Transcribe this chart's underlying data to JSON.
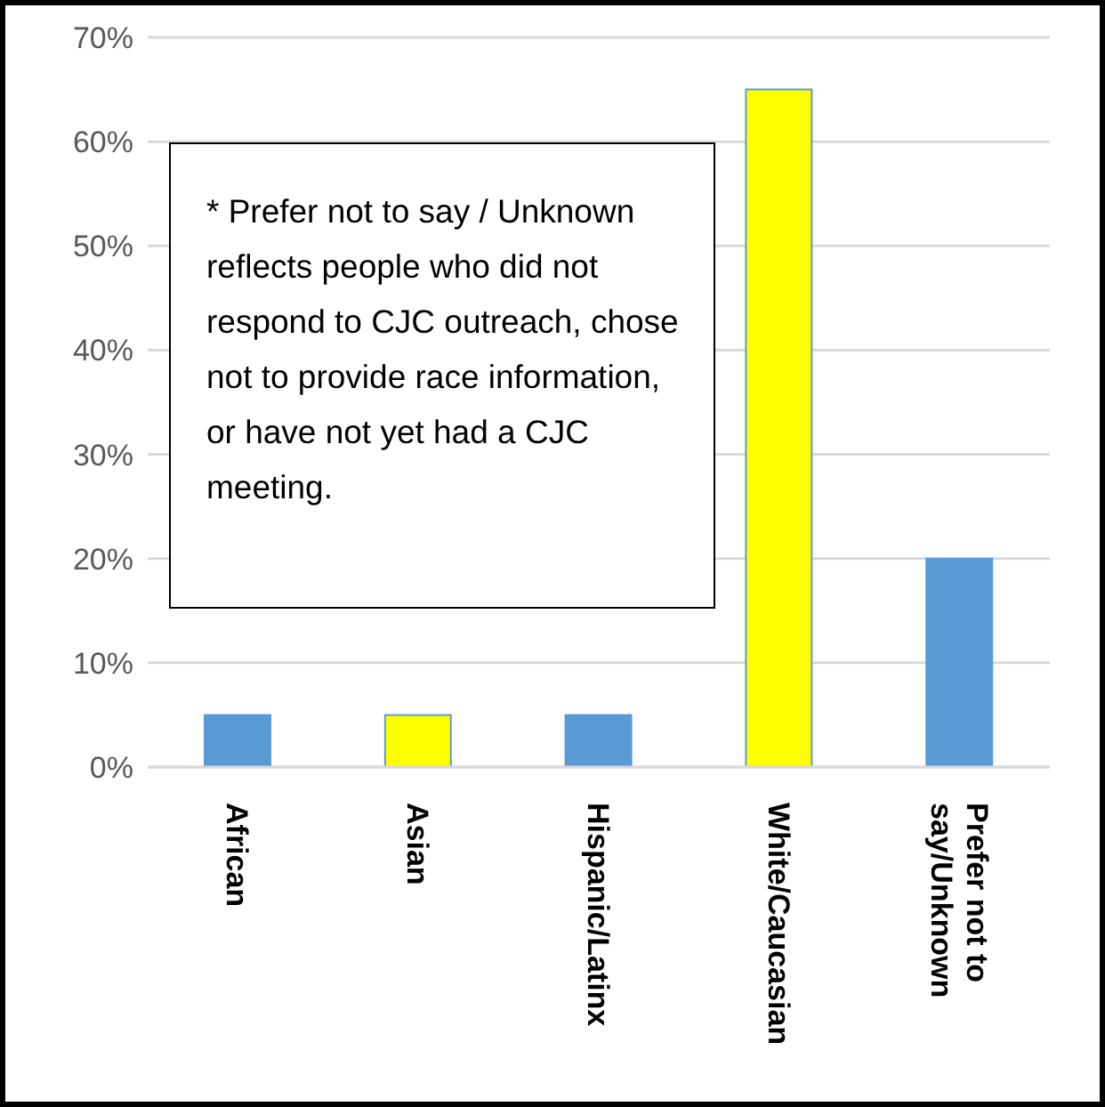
{
  "chart_data": {
    "type": "bar",
    "categories": [
      "African",
      "Asian",
      "Hispanic/Latinx",
      "White/Caucasian",
      "Prefer not to say/Unknown"
    ],
    "values": [
      5,
      5,
      5,
      65,
      20
    ],
    "colors": [
      "#5b9bd5",
      "#ffff00",
      "#5b9bd5",
      "#ffff00",
      "#5b9bd5"
    ],
    "ylim": [
      0,
      70
    ],
    "yticks": [
      {
        "value": 0,
        "label": "0%"
      },
      {
        "value": 10,
        "label": "10%"
      },
      {
        "value": 20,
        "label": "20%"
      },
      {
        "value": 30,
        "label": "30%"
      },
      {
        "value": 40,
        "label": "40%"
      },
      {
        "value": 50,
        "label": "50%"
      },
      {
        "value": 60,
        "label": "60%"
      },
      {
        "value": 70,
        "label": "70%"
      }
    ],
    "grid": "y",
    "annotations": [
      "* Prefer not to say / Unknown reflects people who did not respond to CJC outreach, chose not to provide race information, or have not yet had a CJC meeting."
    ]
  }
}
